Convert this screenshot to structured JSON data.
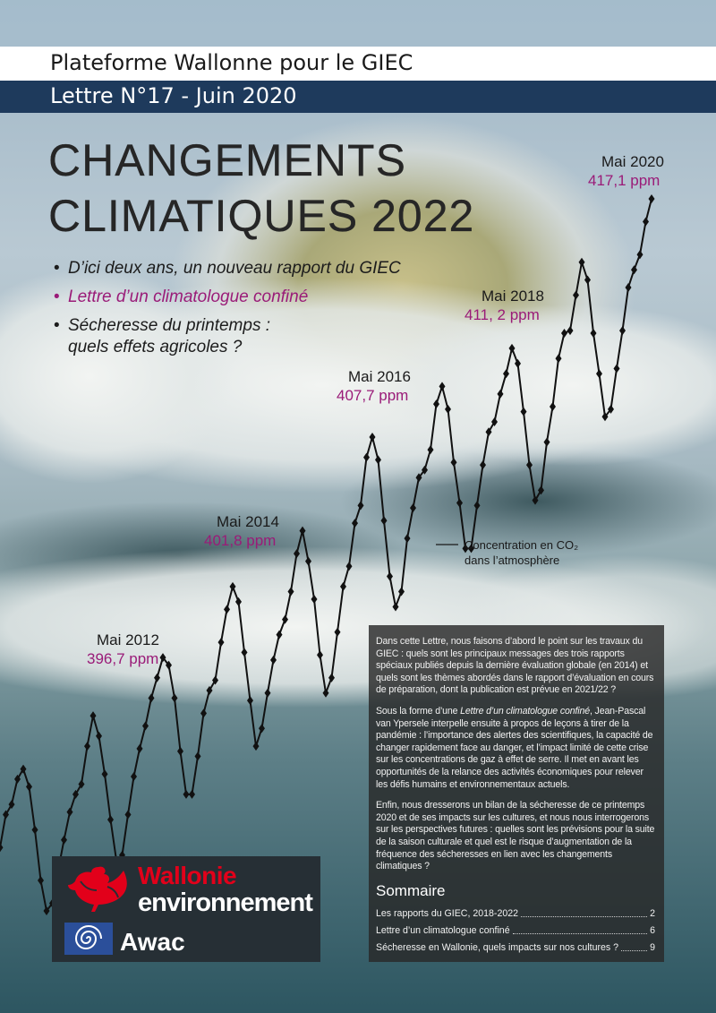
{
  "header": {
    "platform": "Plateforme Wallonne pour le GIEC",
    "letter": "Lettre N°17 - Juin 2020"
  },
  "title": {
    "line1": "CHANGEMENTS",
    "line2": "CLIMATIQUES 2022"
  },
  "highlights": [
    {
      "text": "D’ici deux ans, un nouveau rapport du GIEC",
      "accent": false
    },
    {
      "text": "Lettre d’un climatologue confiné",
      "accent": true
    },
    {
      "text": "Sécheresse du printemps :",
      "accent": false
    },
    {
      "text": "quels effets agricoles ?",
      "accent": false
    }
  ],
  "colors": {
    "accent": "#9a1b78",
    "navy": "#1e3a5c",
    "wallonie_red": "#e2001a",
    "awac_blue": "#2b4f9a"
  },
  "chart_data": {
    "type": "line",
    "title": "",
    "series_label_line1": "Concentration en CO₂",
    "series_label_line2": "dans l’atmosphère",
    "annotations": [
      {
        "date": "Mai 2012",
        "value_label": "396,7 ppm",
        "value": 396.7
      },
      {
        "date": "Mai 2014",
        "value_label": "401,8 ppm",
        "value": 401.8
      },
      {
        "date": "Mai 2016",
        "value_label": "407,7 ppm",
        "value": 407.7
      },
      {
        "date": "Mai 2018",
        "value_label": "411, 2 ppm",
        "value": 411.2
      },
      {
        "date": "Mai 2020",
        "value_label": "417,1 ppm",
        "value": 417.1
      }
    ],
    "x_start": "2011-01",
    "x_end": "2020-05",
    "unit": "ppm",
    "values": [
      391.5,
      392.8,
      393.2,
      394.2,
      394.6,
      393.9,
      392.2,
      390.2,
      389.0,
      389.3,
      390.6,
      391.8,
      392.9,
      393.6,
      394.0,
      395.5,
      396.7,
      395.9,
      394.4,
      392.6,
      391.0,
      391.2,
      392.8,
      394.3,
      395.4,
      396.3,
      397.4,
      398.2,
      399.0,
      398.7,
      397.4,
      395.3,
      393.6,
      393.6,
      395.1,
      396.8,
      397.7,
      398.1,
      399.6,
      400.9,
      401.8,
      401.2,
      399.2,
      397.3,
      395.5,
      396.2,
      397.6,
      398.9,
      399.9,
      400.5,
      401.6,
      403.1,
      404.0,
      402.8,
      401.3,
      399.1,
      397.6,
      398.2,
      400.0,
      401.8,
      402.6,
      404.3,
      405.0,
      406.9,
      407.7,
      406.8,
      404.4,
      402.2,
      401.0,
      401.6,
      403.7,
      404.9,
      406.1,
      406.4,
      407.2,
      409.0,
      409.7,
      408.8,
      406.7,
      405.1,
      403.3,
      403.3,
      405.0,
      406.6,
      407.9,
      408.3,
      409.4,
      410.2,
      411.2,
      410.6,
      408.7,
      406.6,
      405.2,
      405.6,
      407.5,
      408.9,
      410.8,
      411.8,
      411.9,
      413.3,
      414.6,
      413.9,
      411.8,
      410.2,
      408.5,
      408.8,
      410.4,
      411.9,
      413.6,
      414.3,
      414.9,
      416.2,
      417.1
    ]
  },
  "intro": {
    "p1": "Dans cette Lettre, nous faisons d’abord le point sur les travaux du GIEC : quels sont les principaux messages des trois rapports spéciaux publiés depuis la dernière évaluation globale (en 2014) et quels sont les thèmes abordés dans le rapport d’évaluation en cours de préparation, dont la publication est prévue en 2021/22 ?",
    "p2_before": "Sous la forme d’une ",
    "p2_em": "Lettre d’un climatologue confiné",
    "p2_after": ", Jean-Pascal van Ypersele interpelle ensuite à propos de leçons à tirer de la pandémie : l’importance des alertes des scientifiques, la capacité de changer rapidement face au danger, et l’impact limité de cette crise sur les concentrations de gaz à effet de serre. Il met en avant les opportunités de la relance des activités économiques pour relever les défis humains et environnementaux actuels.",
    "p3": "Enfin, nous dresserons un bilan de la sécheresse de ce printemps 2020 et de ses impacts sur les cultures, et nous nous interrogerons sur les perspectives futures : quelles sont les prévisions pour la suite de la saison culturale et quel est le risque d’augmentation de la fréquence des sécheresses en lien avec les changements climatiques ?"
  },
  "sommaire": {
    "title": "Sommaire",
    "items": [
      {
        "label": "Les rapports du GIEC, 2018-2022",
        "page": "2"
      },
      {
        "label": "Lettre d’un climatologue confiné",
        "page": "6"
      },
      {
        "label": "Sécheresse en Wallonie, quels impacts sur nos cultures ?",
        "page": "9"
      }
    ]
  },
  "logos": {
    "wallonie": "Wallonie",
    "environnement": "environnement",
    "awac": "Awac",
    "rooster_icon": "rooster-icon",
    "spiral_icon": "spiral-icon"
  }
}
